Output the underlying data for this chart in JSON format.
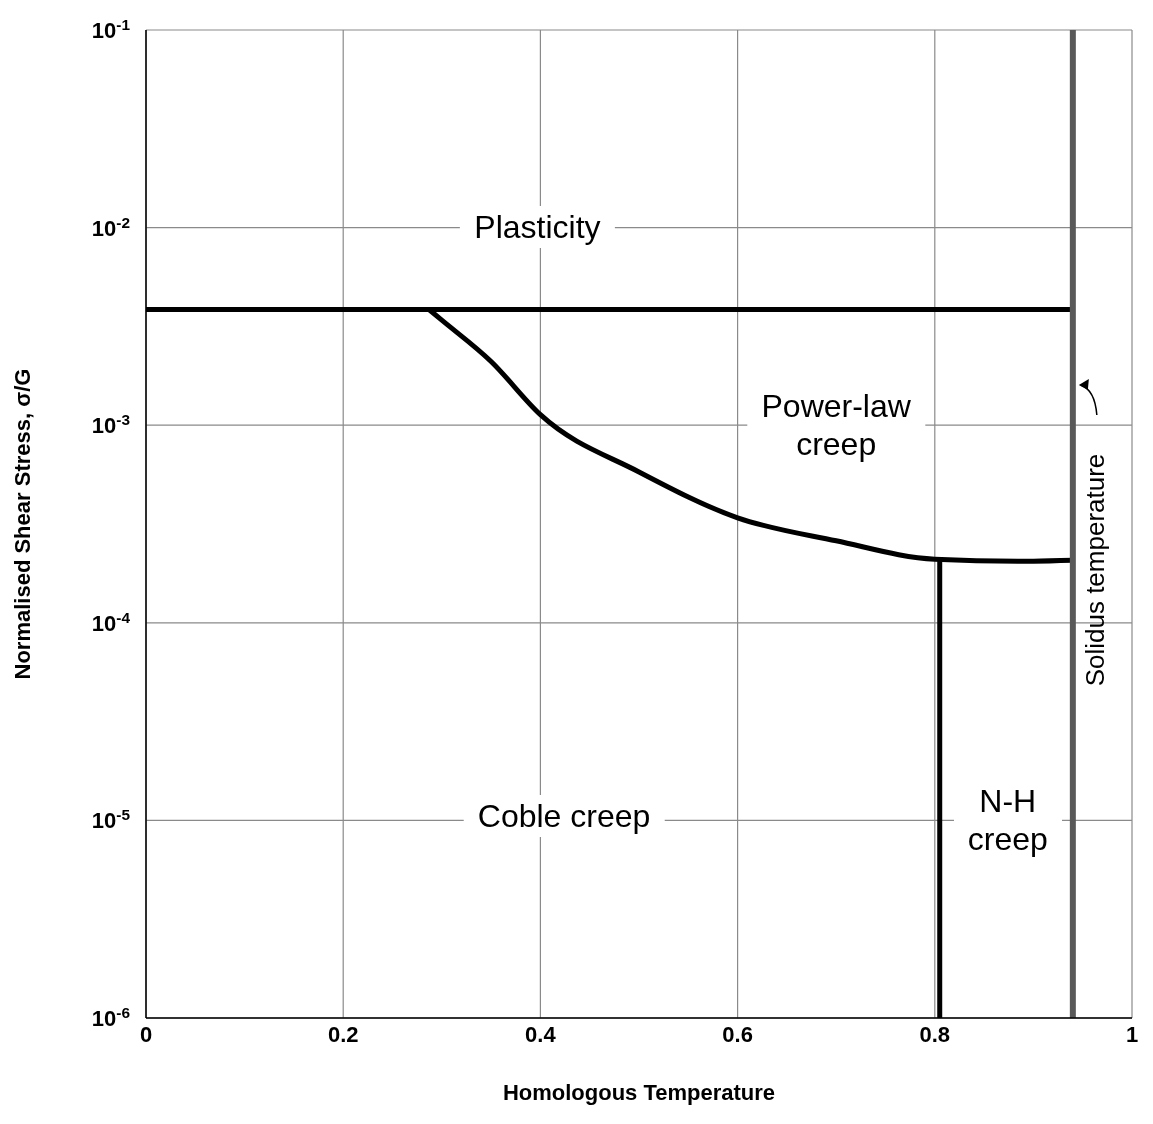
{
  "chart_data": {
    "type": "line",
    "xlabel": "Homologous Temperature",
    "ylabel": "Normalised Shear Stress, σ/G",
    "log": "y",
    "grid": true,
    "marker": "none",
    "line_style": "solid",
    "xlim": [
      0,
      1
    ],
    "xticks": [
      0,
      0.2,
      0.4,
      0.6,
      0.8,
      1
    ],
    "ylim": [
      1e-06,
      0.1
    ],
    "yticks": [
      {
        "value": 1e-06,
        "label": "10$^{-6}$"
      },
      {
        "value": 1e-05,
        "label": "10$^{-5}$"
      },
      {
        "value": 0.0001,
        "label": "10$^{-4}$"
      },
      {
        "value": 0.001,
        "label": "10$^{-3}$"
      },
      {
        "value": 0.01,
        "label": "10$^{-2}$"
      },
      {
        "value": 0.1,
        "label": "10$^{-1}$"
      }
    ],
    "series": [
      {
        "color": "#000000",
        "x": [
          0,
          0.94
        ],
        "values": [
          0.00385,
          0.00385
        ]
      },
      {
        "color": "#000000",
        "x": [
          0.287,
          0.3,
          0.35,
          0.4,
          0.5,
          0.6,
          0.7,
          0.8,
          0.9,
          0.94
        ],
        "values": [
          0.00385,
          0.0034,
          0.0021,
          0.00113,
          0.00058,
          0.00034,
          0.00026,
          0.00021,
          0.000205,
          0.000207
        ]
      },
      {
        "color": "#000000",
        "x": [
          0.805,
          0.805
        ],
        "values": [
          0.00021,
          1e-06
        ]
      }
    ],
    "ref_lines": [
      {
        "axis": "x",
        "value": 0.94,
        "label": "Solidus temperature",
        "color": "#595959"
      }
    ],
    "annotations": [
      "Plasticity",
      "Power-law\ncreep",
      "Coble creep",
      "N-H\ncreep"
    ]
  }
}
